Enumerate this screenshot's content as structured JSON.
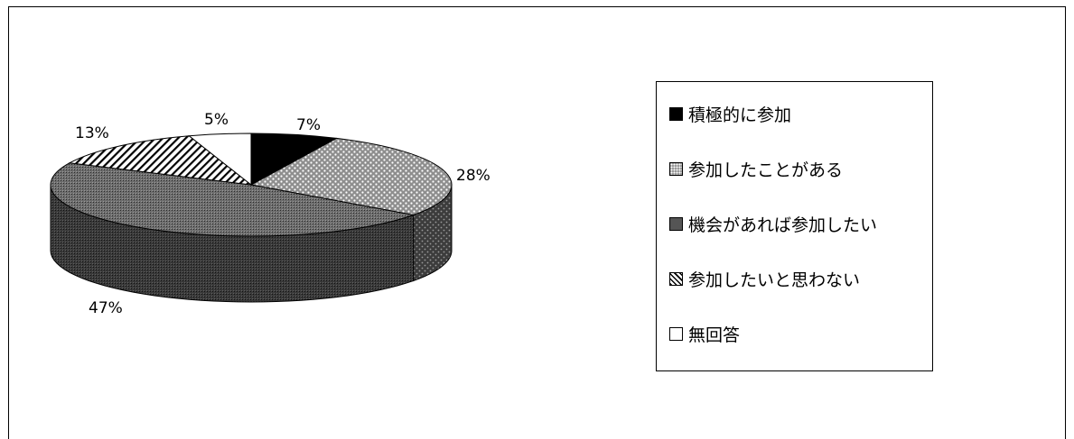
{
  "chart_data": {
    "type": "pie",
    "title": "",
    "slices": [
      {
        "label": "積極的に参加",
        "value": 7,
        "pct_label": "7%",
        "color": "#000000",
        "pattern": "solid"
      },
      {
        "label": "参加したことがある",
        "value": 28,
        "pct_label": "28%",
        "color": "#9a9a9a",
        "pattern": "dots"
      },
      {
        "label": "機会があれば参加したい",
        "value": 47,
        "pct_label": "47%",
        "color": "#5a5a5a",
        "pattern": "fine-check"
      },
      {
        "label": "参加したいと思わない",
        "value": 13,
        "pct_label": "13%",
        "color": "#ffffff",
        "pattern": "diagonal"
      },
      {
        "label": "無回答",
        "value": 5,
        "pct_label": "5%",
        "color": "#ffffff",
        "pattern": "white"
      }
    ],
    "legend_position": "right",
    "style": "3d-pie"
  }
}
